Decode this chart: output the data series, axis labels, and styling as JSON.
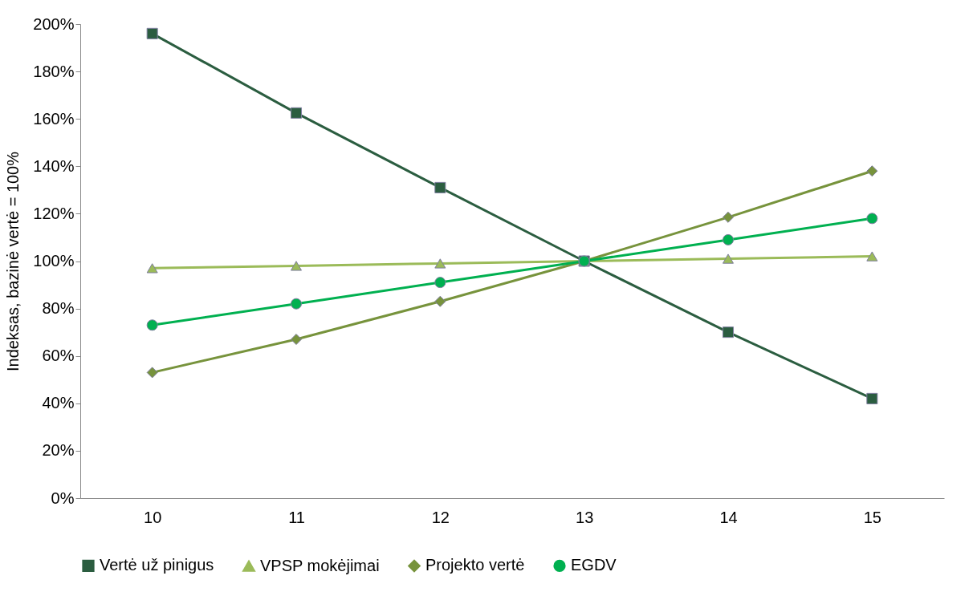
{
  "chart_data": {
    "type": "line",
    "ylabel": "Indeksas, bazinė vertė = 100%",
    "categories": [
      "10",
      "11",
      "12",
      "13",
      "14",
      "15"
    ],
    "ylim": [
      0,
      200
    ],
    "yticks": [
      {
        "value": 0,
        "label": "0%"
      },
      {
        "value": 20,
        "label": "20%"
      },
      {
        "value": 40,
        "label": "40%"
      },
      {
        "value": 60,
        "label": "60%"
      },
      {
        "value": 80,
        "label": "80%"
      },
      {
        "value": 100,
        "label": "100%"
      },
      {
        "value": 120,
        "label": "120%"
      },
      {
        "value": 140,
        "label": "140%"
      },
      {
        "value": 160,
        "label": "160%"
      },
      {
        "value": 180,
        "label": "180%"
      },
      {
        "value": 200,
        "label": "200%"
      }
    ],
    "grid": false,
    "legend": "bottom",
    "line_style": "solid",
    "series": [
      {
        "name": "Vertė už pinigus",
        "color": "#2b5d40",
        "marker": "square",
        "values": [
          196,
          162.5,
          131,
          100,
          70,
          42
        ]
      },
      {
        "name": "VPSP mokėjimai",
        "color": "#9bbb59",
        "marker": "triangle",
        "values": [
          97,
          98,
          99,
          100,
          101,
          102
        ]
      },
      {
        "name": "Projekto vertė",
        "color": "#77933c",
        "marker": "diamond",
        "values": [
          53,
          67,
          83,
          100,
          118.5,
          138
        ]
      },
      {
        "name": "EGDV",
        "color": "#00b050",
        "marker": "circle",
        "values": [
          73,
          82,
          91,
          100,
          109,
          118
        ]
      }
    ]
  }
}
